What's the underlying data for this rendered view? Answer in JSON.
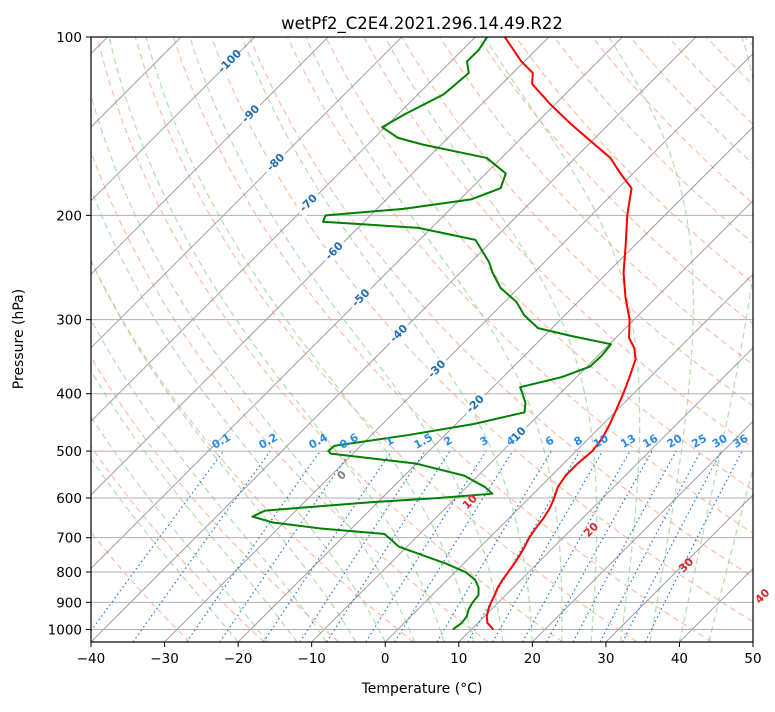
{
  "chart_data": {
    "type": "skew-t",
    "title": "wetPf2_C2E4.2021.296.14.49.R22",
    "xlabel": "Temperature (°C)",
    "ylabel": "Pressure (hPa)",
    "xlim": [
      -40,
      50
    ],
    "ylim_hpa": [
      1050,
      100
    ],
    "x_ticks": [
      -40,
      -30,
      -20,
      -10,
      0,
      10,
      20,
      30,
      40,
      50
    ],
    "x_tick_labels": [
      "−40",
      "−30",
      "−20",
      "−10",
      "0",
      "10",
      "20",
      "30",
      "40",
      "50"
    ],
    "y_ticks": [
      100,
      200,
      300,
      400,
      500,
      600,
      700,
      800,
      900,
      1000
    ],
    "y_tick_labels": [
      "100",
      "200",
      "300",
      "400",
      "500",
      "600",
      "700",
      "800",
      "900",
      "1000"
    ],
    "colors": {
      "temperature": "#ff0000",
      "dewpoint": "#008000",
      "isotherm": "#8f8f8f",
      "dry_adiabat": "#f9a88a",
      "moist_adiabat": "#9fd39f",
      "mixing_ratio": "#1f77d4",
      "isotherm_label": "#1f6fb0",
      "mixing_label": "#2a8ae8",
      "moist_label_warm": "#d62728",
      "moist_label_zero": "#808080"
    },
    "series": [
      {
        "name": "temperature",
        "points": [
          [
            1000,
            13.0
          ],
          [
            975,
            11.3
          ],
          [
            950,
            10.3
          ],
          [
            925,
            9.6
          ],
          [
            900,
            9.0
          ],
          [
            875,
            8.5
          ],
          [
            850,
            7.9
          ],
          [
            825,
            7.5
          ],
          [
            800,
            7.2
          ],
          [
            775,
            6.9
          ],
          [
            750,
            6.5
          ],
          [
            725,
            6.0
          ],
          [
            700,
            5.4
          ],
          [
            675,
            5.0
          ],
          [
            650,
            4.7
          ],
          [
            625,
            4.2
          ],
          [
            600,
            3.4
          ],
          [
            575,
            2.4
          ],
          [
            550,
            1.9
          ],
          [
            525,
            1.9
          ],
          [
            500,
            2.2
          ],
          [
            475,
            1.8
          ],
          [
            450,
            0.9
          ],
          [
            425,
            -0.2
          ],
          [
            400,
            -1.4
          ],
          [
            375,
            -2.8
          ],
          [
            350,
            -4.4
          ],
          [
            335,
            -6.1
          ],
          [
            322,
            -8.2
          ],
          [
            300,
            -10.6
          ],
          [
            275,
            -14.2
          ],
          [
            250,
            -17.8
          ],
          [
            225,
            -21.2
          ],
          [
            200,
            -25.1
          ],
          [
            180,
            -28.2
          ],
          [
            170,
            -31.7
          ],
          [
            160,
            -35.2
          ],
          [
            150,
            -40.1
          ],
          [
            140,
            -45.3
          ],
          [
            130,
            -50.6
          ],
          [
            120,
            -55.9
          ],
          [
            115,
            -57.3
          ],
          [
            110,
            -60.4
          ],
          [
            100,
            -66.0
          ]
        ]
      },
      {
        "name": "dewpoint",
        "points": [
          [
            1000,
            7.5
          ],
          [
            975,
            7.8
          ],
          [
            950,
            7.6
          ],
          [
            925,
            6.9
          ],
          [
            900,
            6.5
          ],
          [
            875,
            6.3
          ],
          [
            850,
            5.3
          ],
          [
            825,
            3.8
          ],
          [
            800,
            1.4
          ],
          [
            775,
            -2.3
          ],
          [
            750,
            -6.6
          ],
          [
            725,
            -11.1
          ],
          [
            700,
            -13.7
          ],
          [
            690,
            -14.8
          ],
          [
            675,
            -24.4
          ],
          [
            660,
            -31.5
          ],
          [
            645,
            -35.1
          ],
          [
            630,
            -34.2
          ],
          [
            610,
            -21.0
          ],
          [
            600,
            -12.3
          ],
          [
            590,
            -5.6
          ],
          [
            575,
            -7.5
          ],
          [
            550,
            -11.9
          ],
          [
            525,
            -20.0
          ],
          [
            505,
            -33.0
          ],
          [
            500,
            -33.7
          ],
          [
            490,
            -33.6
          ],
          [
            470,
            -25.1
          ],
          [
            450,
            -17.6
          ],
          [
            430,
            -12.3
          ],
          [
            415,
            -13.4
          ],
          [
            400,
            -15.1
          ],
          [
            390,
            -16.3
          ],
          [
            375,
            -12.0
          ],
          [
            360,
            -9.6
          ],
          [
            345,
            -9.5
          ],
          [
            330,
            -9.8
          ],
          [
            320,
            -16.1
          ],
          [
            310,
            -21.9
          ],
          [
            295,
            -25.5
          ],
          [
            280,
            -28.4
          ],
          [
            265,
            -32.5
          ],
          [
            250,
            -35.6
          ],
          [
            240,
            -37.5
          ],
          [
            220,
            -42.4
          ],
          [
            210,
            -51.8
          ],
          [
            205,
            -65.6
          ],
          [
            200,
            -66.1
          ],
          [
            195,
            -56.4
          ],
          [
            188,
            -48.5
          ],
          [
            180,
            -46.0
          ],
          [
            170,
            -47.3
          ],
          [
            160,
            -52.0
          ],
          [
            152,
            -62.4
          ],
          [
            148,
            -66.8
          ],
          [
            142,
            -70.4
          ],
          [
            135,
            -69.1
          ],
          [
            125,
            -66.5
          ],
          [
            115,
            -66.0
          ],
          [
            110,
            -67.8
          ],
          [
            105,
            -67.8
          ],
          [
            100,
            -68.4
          ]
        ]
      }
    ],
    "isotherm_labels": [
      {
        "t": -100,
        "p": 110,
        "text": "-100"
      },
      {
        "t": -90,
        "p": 135,
        "text": "-90"
      },
      {
        "t": -80,
        "p": 163,
        "text": "-80"
      },
      {
        "t": -70,
        "p": 191,
        "text": "-70"
      },
      {
        "t": -60,
        "p": 230,
        "text": "-60"
      },
      {
        "t": -50,
        "p": 276,
        "text": "-50"
      },
      {
        "t": -40,
        "p": 317,
        "text": "-40"
      },
      {
        "t": -30,
        "p": 364,
        "text": "-30"
      },
      {
        "t": -20,
        "p": 417,
        "text": "-20"
      },
      {
        "t": -10,
        "p": 472,
        "text": "-10"
      }
    ],
    "mixing_ratios": [
      0.1,
      0.2,
      0.4,
      0.6,
      1,
      1.5,
      2,
      3,
      4,
      6,
      8,
      10,
      13,
      16,
      20,
      25,
      30,
      36
    ],
    "mixing_ratio_labels": [
      "0.1",
      "0.2",
      "0.4",
      "0.6",
      "1",
      "1.5",
      "2",
      "3",
      "4",
      "6",
      "8",
      "10",
      "13",
      "16",
      "20",
      "25",
      "30",
      "36"
    ],
    "moist_adiabat_labels": [
      {
        "tsurf": 0,
        "p": 550,
        "text": "0"
      },
      {
        "tsurf": 10,
        "p": 610,
        "text": "10"
      },
      {
        "tsurf": 20,
        "p": 680,
        "text": "20"
      },
      {
        "tsurf": 30,
        "p": 780,
        "text": "30"
      },
      {
        "tsurf": 40,
        "p": 880,
        "text": "40"
      }
    ]
  }
}
